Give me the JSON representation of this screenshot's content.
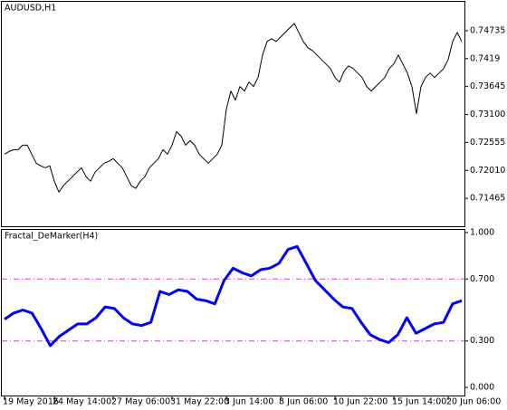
{
  "chart_data": [
    {
      "type": "line",
      "title": "AUDUSD,H1",
      "color": "#000000",
      "ylim": [
        0.7092,
        0.75298
      ],
      "yticks": [
        0.74735,
        0.7419,
        0.73645,
        {
          "value": 0.731,
          "label": "0.73100"
        },
        0.72555,
        {
          "value": 0.7201,
          "label": "0.72010"
        },
        0.71465
      ],
      "values": [
        0.72327,
        0.72379,
        0.72414,
        0.72414,
        0.72502,
        0.72502,
        0.72327,
        0.72151,
        0.72098,
        0.72063,
        0.72098,
        0.71799,
        0.71588,
        0.71711,
        0.71799,
        0.71887,
        0.71975,
        0.72063,
        0.71887,
        0.71799,
        0.71975,
        0.72063,
        0.72151,
        0.72186,
        0.72239,
        0.72151,
        0.72063,
        0.71887,
        0.71711,
        0.71658,
        0.71799,
        0.71887,
        0.72063,
        0.72151,
        0.72239,
        0.72414,
        0.72327,
        0.72502,
        0.72766,
        0.72678,
        0.72502,
        0.7259,
        0.72502,
        0.72327,
        0.72239,
        0.72151,
        0.72239,
        0.72327,
        0.72502,
        0.73206,
        0.73557,
        0.73381,
        0.73645,
        0.73557,
        0.73733,
        0.73645,
        0.73821,
        0.7426,
        0.74524,
        0.74577,
        0.74524,
        0.74612,
        0.747,
        0.74788,
        0.74876,
        0.747,
        0.74524,
        0.74401,
        0.74348,
        0.7426,
        0.74172,
        0.74085,
        0.73997,
        0.73821,
        0.73733,
        0.73944,
        0.74049,
        0.73997,
        0.73909,
        0.73821,
        0.73645,
        0.73557,
        0.73645,
        0.73733,
        0.73821,
        0.73997,
        0.74085,
        0.7426,
        0.74085,
        0.73909,
        0.73645,
        0.73118,
        0.73645,
        0.73821,
        0.73909,
        0.73821,
        0.73909,
        0.73997,
        0.74172,
        0.74524,
        0.747,
        0.74524
      ]
    },
    {
      "type": "line",
      "title": "Fractal_DeMarker(H4)",
      "color": "#0000ff",
      "ylim": [
        -0.052,
        1.017
      ],
      "yticks": [
        {
          "value": 1,
          "label": "1.000"
        },
        {
          "value": 0.7,
          "label": "0.700"
        },
        {
          "value": 0.3,
          "label": "0.300"
        },
        {
          "value": 0,
          "label": "0.000"
        }
      ],
      "levels": [
        0.7,
        0.3
      ],
      "level_color": "#cc44cc",
      "values": [
        0.44,
        0.48,
        0.5,
        0.48,
        0.38,
        0.27,
        0.33,
        0.37,
        0.41,
        0.41,
        0.45,
        0.52,
        0.51,
        0.45,
        0.41,
        0.4,
        0.42,
        0.62,
        0.6,
        0.63,
        0.62,
        0.57,
        0.56,
        0.54,
        0.69,
        0.77,
        0.74,
        0.72,
        0.76,
        0.77,
        0.8,
        0.89,
        0.91,
        0.8,
        0.69,
        0.63,
        0.57,
        0.52,
        0.51,
        0.42,
        0.34,
        0.31,
        0.29,
        0.34,
        0.45,
        0.35,
        0.38,
        0.41,
        0.42,
        0.54,
        0.56
      ],
      "xlim": [
        0,
        101
      ],
      "xticks": [
        {
          "value": 0,
          "label": "19 May 2016"
        },
        {
          "value": 11,
          "label": "24 May 14:00"
        },
        {
          "value": 24,
          "label": "27 May 06:00"
        },
        {
          "value": 37,
          "label": "31 May 22:00"
        },
        {
          "value": 49,
          "label": "3 Jun 14:00"
        },
        {
          "value": 61,
          "label": "8 Jun 06:00"
        },
        {
          "value": 73,
          "label": "10 Jun 22:00"
        },
        {
          "value": 86,
          "label": "15 Jun 14:00"
        },
        {
          "value": 98,
          "label": "20 Jun 06:00"
        }
      ]
    }
  ]
}
